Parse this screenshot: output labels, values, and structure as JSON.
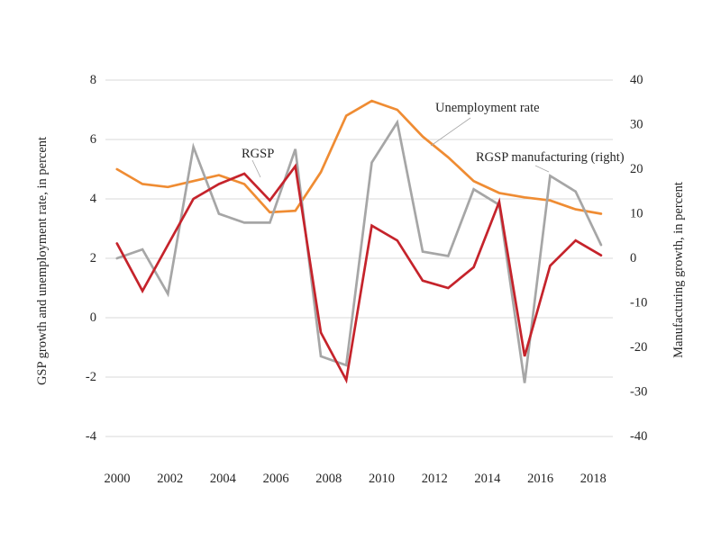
{
  "chart_data": {
    "type": "line",
    "x": [
      2000,
      2001,
      2002,
      2003,
      2004,
      2005,
      2006,
      2007,
      2008,
      2009,
      2010,
      2011,
      2012,
      2013,
      2014,
      2015,
      2016,
      2017,
      2018,
      2019
    ],
    "series": [
      {
        "name": "Unemployment rate",
        "axis": "left",
        "color": "#EF8C33",
        "values": [
          5.0,
          4.5,
          4.4,
          4.6,
          4.8,
          4.5,
          3.55,
          3.6,
          4.9,
          6.8,
          7.3,
          7.0,
          6.1,
          5.4,
          4.6,
          4.2,
          4.05,
          3.95,
          3.65,
          3.5
        ]
      },
      {
        "name": "RGSP manufacturing (right)",
        "axis": "right",
        "color": "#A6A6A6",
        "values": [
          0,
          2,
          -8,
          25,
          10,
          8,
          8,
          24.5,
          -22,
          -24,
          21.5,
          30.5,
          1.5,
          0.5,
          15.5,
          12,
          -28,
          18.5,
          15,
          3
        ]
      },
      {
        "name": "RGSP",
        "axis": "left",
        "color": "#C5232B",
        "values": [
          2.5,
          0.9,
          2.45,
          4.0,
          4.5,
          4.85,
          3.95,
          5.1,
          -0.5,
          -2.1,
          3.1,
          2.6,
          1.25,
          1.0,
          1.7,
          3.9,
          -1.3,
          1.75,
          2.6,
          2.1
        ]
      }
    ],
    "left_axis": {
      "title": "GSP growth and unemployment rate, in percent",
      "ticks": [
        8,
        6,
        4,
        2,
        0,
        -2,
        -4
      ],
      "range": [
        -4,
        8
      ]
    },
    "right_axis": {
      "title": "Manufacturing growth, in percent",
      "ticks": [
        40,
        30,
        20,
        10,
        0,
        -10,
        -20,
        -30,
        -40
      ],
      "range": [
        -40,
        40
      ]
    },
    "x_axis": {
      "tick_labels": [
        2000,
        2002,
        2004,
        2006,
        2008,
        2010,
        2012,
        2014,
        2016,
        2018
      ]
    },
    "grid": "horizontal",
    "legend_position": "inline-annotations",
    "annotations": [
      {
        "text": "Unemployment rate",
        "series": "Unemployment rate"
      },
      {
        "text": "RGSP",
        "series": "RGSP"
      },
      {
        "text": "RGSP manufacturing (right)",
        "series": "RGSP manufacturing (right)"
      }
    ]
  },
  "colors": {
    "background": "#FFFFFF",
    "gridline": "#D9D9D9",
    "text": "#262626",
    "leader_line": "#A6A6A6",
    "unemployment": "#EF8C33",
    "rgsp": "#C5232B",
    "manufacturing": "#A6A6A6"
  }
}
